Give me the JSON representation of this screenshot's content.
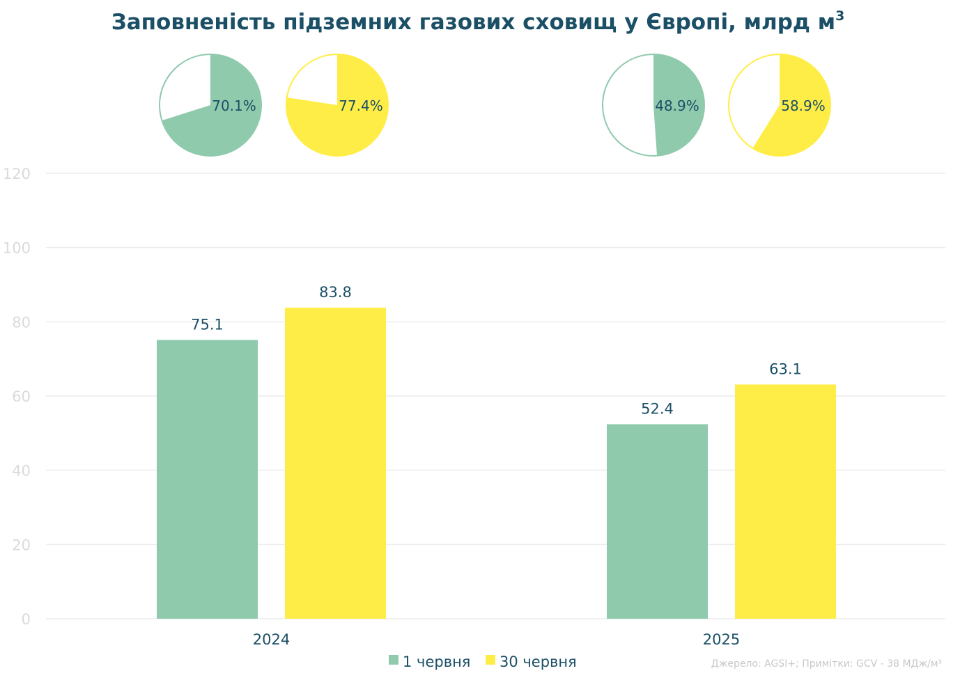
{
  "chart_data": {
    "type": "bar",
    "title": "Заповненість підземних газових сховищ у Європі, млрд м",
    "title_superscript": "3",
    "categories": [
      "2024",
      "2025"
    ],
    "series": [
      {
        "name": "1 червня",
        "color": "#8fcaad",
        "values": [
          75.1,
          52.4
        ],
        "value_labels": [
          "75.1",
          "52.4"
        ],
        "fill_pct": [
          70.1,
          48.9
        ],
        "pct_labels": [
          "70.1%",
          "48.9%"
        ]
      },
      {
        "name": "30 червня",
        "color": "#ffed47",
        "values": [
          83.8,
          63.1
        ],
        "value_labels": [
          "83.8",
          "63.1"
        ],
        "fill_pct": [
          77.4,
          58.9
        ],
        "pct_labels": [
          "77.4%",
          "58.9%"
        ]
      }
    ],
    "ylim": [
      0,
      120
    ],
    "yticks": [
      "0",
      "20",
      "40",
      "60",
      "80",
      "100",
      "120"
    ],
    "grid": true,
    "legend_position": "bottom",
    "source_note": "Джерело: AGSI+; Примітки: GCV - 38 МДж/м³"
  }
}
